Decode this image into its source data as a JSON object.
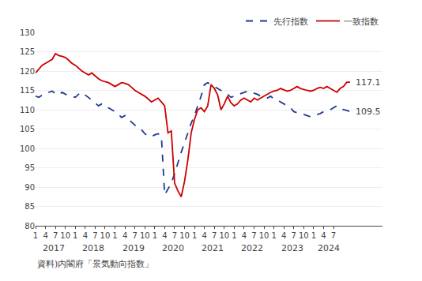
{
  "chart_data": {
    "type": "line",
    "categories": [
      "1",
      null,
      null,
      "4",
      null,
      null,
      "7",
      null,
      null,
      "10",
      null,
      null,
      "1",
      null,
      null,
      "4",
      null,
      null,
      "7",
      null,
      null,
      "10",
      null,
      null,
      "1",
      null,
      null,
      "4",
      null,
      null,
      "7",
      null,
      null,
      "10",
      null,
      null,
      "1",
      null,
      null,
      "4",
      null,
      null,
      "7",
      null,
      null,
      "10",
      null,
      null,
      "1",
      null,
      null,
      "4",
      null,
      null,
      "7",
      null,
      null,
      "10",
      null,
      null,
      "1",
      null,
      null,
      "4",
      null,
      null,
      "7",
      null,
      null,
      "10",
      null,
      null,
      "1",
      null,
      null,
      "4",
      null,
      null,
      "7",
      null,
      null,
      "10",
      null,
      null,
      "1",
      null,
      null,
      "4",
      null,
      null,
      "7",
      null,
      null,
      null,
      null,
      null
    ],
    "series": [
      {
        "name": "先行指数",
        "color": "#1F3A93",
        "line_style": "dashed",
        "values": [
          113.5,
          113.2,
          113.8,
          114.0,
          114.5,
          114.8,
          114.2,
          113.8,
          114.5,
          114.0,
          113.8,
          113.5,
          113.2,
          114.0,
          114.5,
          113.8,
          113.2,
          112.5,
          111.8,
          111.0,
          111.5,
          111.0,
          110.5,
          110.0,
          109.5,
          108.8,
          108.0,
          108.5,
          107.5,
          106.8,
          106.0,
          105.5,
          104.8,
          103.8,
          103.2,
          103.0,
          103.5,
          103.8,
          103.2,
          88.0,
          89.5,
          91.0,
          93.5,
          96.5,
          99.0,
          101.5,
          104.0,
          106.5,
          108.5,
          110.8,
          113.5,
          116.5,
          117.0,
          116.5,
          116.0,
          115.5,
          115.0,
          114.5,
          114.0,
          113.2,
          113.5,
          113.8,
          114.2,
          114.5,
          114.8,
          114.5,
          114.2,
          114.0,
          113.5,
          113.2,
          113.0,
          113.5,
          112.8,
          112.5,
          112.0,
          111.5,
          111.0,
          110.5,
          109.5,
          109.2,
          109.0,
          108.8,
          108.5,
          108.2,
          108.5,
          108.8,
          109.0,
          109.5,
          109.8,
          110.0,
          110.5,
          111.0,
          110.5,
          110.0,
          109.8,
          109.5
        ]
      },
      {
        "name": "一致指数",
        "color": "#CC0000",
        "line_style": "solid",
        "values": [
          119.5,
          120.5,
          121.5,
          122.0,
          122.5,
          123.0,
          124.5,
          124.0,
          123.8,
          123.5,
          122.8,
          122.0,
          121.5,
          120.8,
          120.0,
          119.5,
          119.0,
          119.5,
          118.8,
          118.0,
          117.5,
          117.2,
          117.0,
          116.5,
          116.0,
          116.5,
          117.0,
          116.8,
          116.5,
          115.8,
          115.0,
          114.5,
          114.0,
          113.5,
          112.8,
          112.0,
          112.5,
          113.0,
          112.0,
          111.0,
          104.0,
          104.5,
          91.0,
          89.0,
          87.5,
          91.5,
          97.0,
          104.0,
          107.5,
          110.0,
          110.5,
          109.5,
          111.0,
          116.5,
          115.5,
          113.8,
          110.0,
          111.5,
          113.5,
          111.8,
          111.0,
          111.5,
          112.5,
          113.0,
          112.5,
          112.0,
          113.0,
          112.5,
          113.0,
          113.5,
          114.0,
          114.5,
          114.8,
          115.0,
          115.5,
          115.2,
          114.8,
          115.0,
          115.5,
          116.0,
          115.5,
          115.2,
          115.0,
          114.8,
          115.0,
          115.5,
          115.8,
          115.5,
          116.0,
          115.5,
          115.0,
          114.5,
          115.5,
          116.0,
          117.1,
          117.1
        ]
      }
    ],
    "ylim": [
      80,
      130
    ],
    "yticks": [
      80,
      85,
      90,
      95,
      100,
      105,
      110,
      115,
      120,
      125,
      130
    ],
    "grid": true,
    "legend": "upper right",
    "annotations": [
      {
        "text": "2017",
        "x": 5.5
      },
      {
        "text": "2018",
        "x": 17.5
      },
      {
        "text": "2019",
        "x": 29.5
      },
      {
        "text": "2020",
        "x": 41.5
      },
      {
        "text": "2021",
        "x": 53.5
      },
      {
        "text": "2022",
        "x": 65.5
      },
      {
        "text": "2023",
        "x": 77.5
      },
      {
        "text": "2024",
        "x": 88.5
      },
      {
        "text": "117.1",
        "x": 95,
        "y": 117.1
      },
      {
        "text": "109.5",
        "x": 95,
        "y": 109.5
      },
      {
        "text": "資料)内閣府「景気動向指数」"
      }
    ]
  }
}
